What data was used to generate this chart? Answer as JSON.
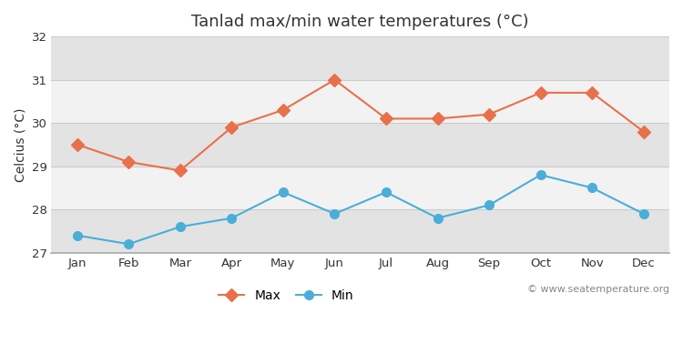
{
  "title": "Tanlad max/min water temperatures (°C)",
  "ylabel": "Celcius (°C)",
  "months": [
    "Jan",
    "Feb",
    "Mar",
    "Apr",
    "May",
    "Jun",
    "Jul",
    "Aug",
    "Sep",
    "Oct",
    "Nov",
    "Dec"
  ],
  "max_values": [
    29.5,
    29.1,
    28.9,
    29.9,
    30.3,
    31.0,
    30.1,
    30.1,
    30.2,
    30.7,
    30.7,
    29.8
  ],
  "min_values": [
    27.4,
    27.2,
    27.6,
    27.8,
    28.4,
    27.9,
    28.4,
    27.8,
    28.1,
    28.8,
    28.5,
    27.9
  ],
  "max_color": "#e8704a",
  "min_color": "#4aaed9",
  "ylim": [
    27.0,
    32.0
  ],
  "yticks": [
    27,
    28,
    29,
    30,
    31,
    32
  ],
  "fig_bg_color": "#ffffff",
  "band_light": "#f2f2f2",
  "band_dark": "#e3e3e3",
  "watermark": "© www.seatemperature.org",
  "legend_max": "Max",
  "legend_min": "Min",
  "title_fontsize": 13,
  "label_fontsize": 10,
  "tick_fontsize": 9.5,
  "watermark_fontsize": 8,
  "grid_color": "#cccccc",
  "spine_color": "#aaaaaa"
}
